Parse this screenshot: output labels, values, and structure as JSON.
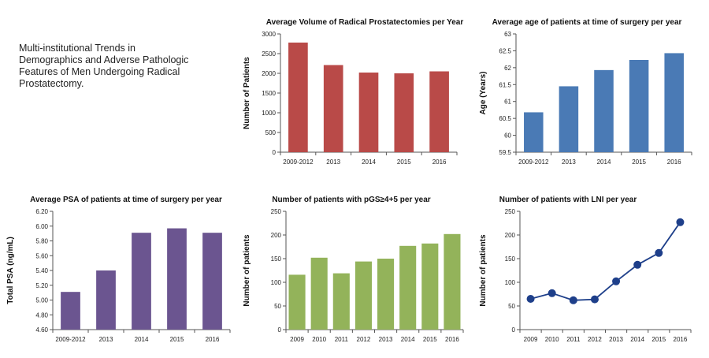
{
  "intro": {
    "text": "Multi-institutional Trends in\nDemographics and Adverse Pathologic\nFeatures of Men Undergoing Radical\nProstatectomy."
  },
  "chart_data": [
    {
      "id": "volume",
      "type": "bar",
      "title": "Average Volume of Radical Prostatectomies per Year",
      "ylabel": "Number of Patients",
      "xlabel": "",
      "categories": [
        "2009-2012",
        "2013",
        "2014",
        "2015",
        "2016"
      ],
      "values": [
        2780,
        2210,
        2020,
        2000,
        2050
      ],
      "ylim": [
        0,
        3000
      ],
      "yticks": [
        0,
        500,
        1000,
        1500,
        2000,
        2500,
        3000
      ],
      "ytick_labels": [
        "0",
        "500",
        "1000",
        "1500",
        "2000",
        "2500",
        "3000"
      ],
      "color": "#b94a48",
      "grid": false
    },
    {
      "id": "age",
      "type": "bar",
      "title": "Average age of patients at time of surgery per year",
      "ylabel": "Age (Years)",
      "xlabel": "",
      "categories": [
        "2009-2012",
        "2013",
        "2014",
        "2015",
        "2016"
      ],
      "values": [
        60.68,
        61.45,
        61.93,
        62.23,
        62.43
      ],
      "ylim": [
        59.5,
        63
      ],
      "yticks": [
        59.5,
        60,
        60.5,
        61,
        61.5,
        62,
        62.5,
        63
      ],
      "ytick_labels": [
        "59.5",
        "60",
        "60.5",
        "61",
        "61.5",
        "62",
        "62.5",
        "63"
      ],
      "color": "#4a7ab5",
      "grid": false
    },
    {
      "id": "psa",
      "type": "bar",
      "title": "Average PSA of patients at time of surgery per year",
      "ylabel": "Total PSA (ng/mL)",
      "xlabel": "",
      "categories": [
        "2009-2012",
        "2013",
        "2014",
        "2015",
        "2016"
      ],
      "values": [
        5.11,
        5.4,
        5.91,
        5.97,
        5.91
      ],
      "ylim": [
        4.6,
        6.2
      ],
      "yticks": [
        4.6,
        4.8,
        5.0,
        5.2,
        5.4,
        5.6,
        5.8,
        6.0,
        6.2
      ],
      "ytick_labels": [
        "4.60",
        "4.80",
        "5.00",
        "5.20",
        "5.40",
        "5.60",
        "5.80",
        "6.00",
        "6.20"
      ],
      "color": "#6b5590",
      "grid": false
    },
    {
      "id": "pgs",
      "type": "bar",
      "title": "Number of patients with pGS≥4+5 per year",
      "ylabel": "Number of patients",
      "xlabel": "",
      "categories": [
        "2009",
        "2010",
        "2011",
        "2012",
        "2013",
        "2014",
        "2015",
        "2016"
      ],
      "values": [
        116,
        152,
        119,
        144,
        150,
        177,
        182,
        202
      ],
      "ylim": [
        0,
        250
      ],
      "yticks": [
        0,
        50,
        100,
        150,
        200,
        250
      ],
      "ytick_labels": [
        "0",
        "50",
        "100",
        "150",
        "200",
        "250"
      ],
      "color": "#93b35a",
      "grid": false
    },
    {
      "id": "lni",
      "type": "line",
      "title": "Number of patients with LNI per year",
      "ylabel": "Number of patients",
      "xlabel": "",
      "categories": [
        "2009",
        "2010",
        "2011",
        "2012",
        "2013",
        "2014",
        "2015",
        "2016"
      ],
      "values": [
        65,
        77,
        62,
        64,
        102,
        137,
        162,
        227
      ],
      "ylim": [
        0,
        250
      ],
      "yticks": [
        0,
        50,
        100,
        150,
        200,
        250
      ],
      "ytick_labels": [
        "0",
        "50",
        "100",
        "150",
        "200",
        "250"
      ],
      "color": "#1e3f8a",
      "grid": false
    }
  ]
}
